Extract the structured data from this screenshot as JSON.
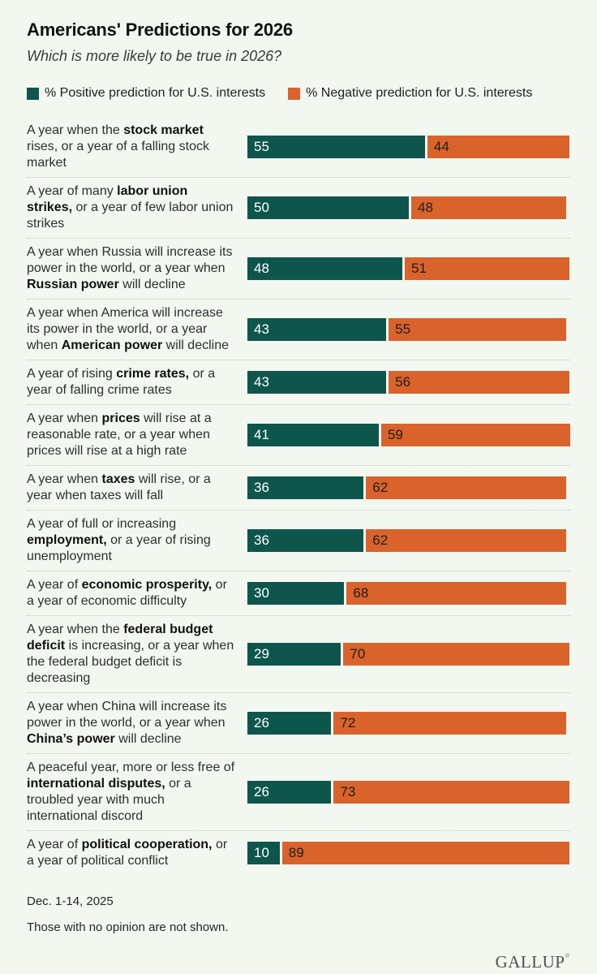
{
  "page": {
    "background": "#F2F7F0"
  },
  "header": {
    "title": "Americans' Predictions for 2026",
    "subtitle": "Which is more likely to be true in 2026?"
  },
  "legend": {
    "positive": {
      "label": "% Positive prediction for U.S. interests",
      "color": "#0E564C"
    },
    "negative": {
      "label": "% Negative prediction for U.S. interests",
      "color": "#D9632B"
    }
  },
  "chart_data": {
    "type": "bar",
    "orientation": "horizontal",
    "stacked": true,
    "xlim": [
      0,
      100
    ],
    "grid": false,
    "legend_position": "top",
    "title": "Americans' Predictions for 2026",
    "subtitle": "Which is more likely to be true in 2026?",
    "categories": [
      "A year when the stock market rises, or a year of a falling stock market",
      "A year of many labor union strikes, or a year of few labor union strikes",
      "A year when Russia will increase its power in the world, or a year when Russian power will decline",
      "A year when America will increase its power in the world, or a year when American power will decline",
      "A year of rising crime rates, or a year of falling crime rates",
      "A year when prices will rise at a reasonable rate, or a year when prices will rise at a high rate",
      "A year when taxes will rise, or a year when taxes will fall",
      "A year of full or increasing employment, or a year of rising unemployment",
      "A year of economic prosperity, or a year of economic difficulty",
      "A year when the federal budget deficit is increasing, or a year when the federal budget deficit is decreasing",
      "A year when China will increase its power in the world, or a year when China’s power will decline",
      "A peaceful year, more or less free of international disputes, or a troubled year with much international discord",
      "A year of political cooperation, or a year of political conflict"
    ],
    "series": [
      {
        "name": "% Positive prediction for U.S. interests",
        "color": "#0E564C",
        "values": [
          55,
          50,
          48,
          43,
          43,
          41,
          36,
          36,
          30,
          29,
          26,
          26,
          10
        ]
      },
      {
        "name": "% Negative prediction for U.S. interests",
        "color": "#D9632B",
        "values": [
          44,
          48,
          51,
          55,
          56,
          59,
          62,
          62,
          68,
          70,
          72,
          73,
          89
        ]
      }
    ]
  },
  "rows": [
    {
      "positive": 55,
      "negative": 44,
      "segments": [
        {
          "t": "A year when the ",
          "b": false
        },
        {
          "t": "stock market",
          "b": true
        },
        {
          "t": " rises, or a year of a falling stock market",
          "b": false
        }
      ]
    },
    {
      "positive": 50,
      "negative": 48,
      "segments": [
        {
          "t": "A year of many ",
          "b": false
        },
        {
          "t": "labor union strikes,",
          "b": true
        },
        {
          "t": " or a year of few labor union strikes",
          "b": false
        }
      ]
    },
    {
      "positive": 48,
      "negative": 51,
      "segments": [
        {
          "t": "A year when Russia will increase its power in the world, or a year when ",
          "b": false
        },
        {
          "t": "Russian power",
          "b": true
        },
        {
          "t": " will decline",
          "b": false
        }
      ]
    },
    {
      "positive": 43,
      "negative": 55,
      "segments": [
        {
          "t": "A year when America will increase its power in the world, or a year when ",
          "b": false
        },
        {
          "t": "American power",
          "b": true
        },
        {
          "t": " will decline",
          "b": false
        }
      ]
    },
    {
      "positive": 43,
      "negative": 56,
      "segments": [
        {
          "t": "A year of rising ",
          "b": false
        },
        {
          "t": "crime rates,",
          "b": true
        },
        {
          "t": " or a year of falling crime rates",
          "b": false
        }
      ]
    },
    {
      "positive": 41,
      "negative": 59,
      "segments": [
        {
          "t": "A year when ",
          "b": false
        },
        {
          "t": "prices",
          "b": true
        },
        {
          "t": " will rise at a reasonable rate, or a year when prices will rise at a high rate",
          "b": false
        }
      ]
    },
    {
      "positive": 36,
      "negative": 62,
      "segments": [
        {
          "t": "A year when ",
          "b": false
        },
        {
          "t": "taxes",
          "b": true
        },
        {
          "t": " will rise, or a year when taxes will fall",
          "b": false
        }
      ]
    },
    {
      "positive": 36,
      "negative": 62,
      "segments": [
        {
          "t": "A year of full or increasing ",
          "b": false
        },
        {
          "t": "employment,",
          "b": true
        },
        {
          "t": " or a year of rising unemployment",
          "b": false
        }
      ]
    },
    {
      "positive": 30,
      "negative": 68,
      "segments": [
        {
          "t": "A year of ",
          "b": false
        },
        {
          "t": "economic prosperity,",
          "b": true
        },
        {
          "t": " or a year of economic difficulty",
          "b": false
        }
      ]
    },
    {
      "positive": 29,
      "negative": 70,
      "segments": [
        {
          "t": "A year when the ",
          "b": false
        },
        {
          "t": "federal budget deficit",
          "b": true
        },
        {
          "t": " is increasing, or a year when the federal budget deficit is decreasing",
          "b": false
        }
      ]
    },
    {
      "positive": 26,
      "negative": 72,
      "segments": [
        {
          "t": "A year when China will increase its power in the world, or a year when ",
          "b": false
        },
        {
          "t": "China’s power",
          "b": true
        },
        {
          "t": " will decline",
          "b": false
        }
      ]
    },
    {
      "positive": 26,
      "negative": 73,
      "segments": [
        {
          "t": "A peaceful year, more or less free of ",
          "b": false
        },
        {
          "t": "international disputes,",
          "b": true
        },
        {
          "t": " or a troubled year with much international discord",
          "b": false
        }
      ]
    },
    {
      "positive": 10,
      "negative": 89,
      "segments": [
        {
          "t": "A year of ",
          "b": false
        },
        {
          "t": "political cooperation,",
          "b": true
        },
        {
          "t": " or a year of political conflict",
          "b": false
        }
      ]
    }
  ],
  "footer": {
    "date": "Dec. 1-14, 2025",
    "note": "Those with no opinion are not shown.",
    "brand": "GALLUP",
    "brand_mark": "®"
  }
}
